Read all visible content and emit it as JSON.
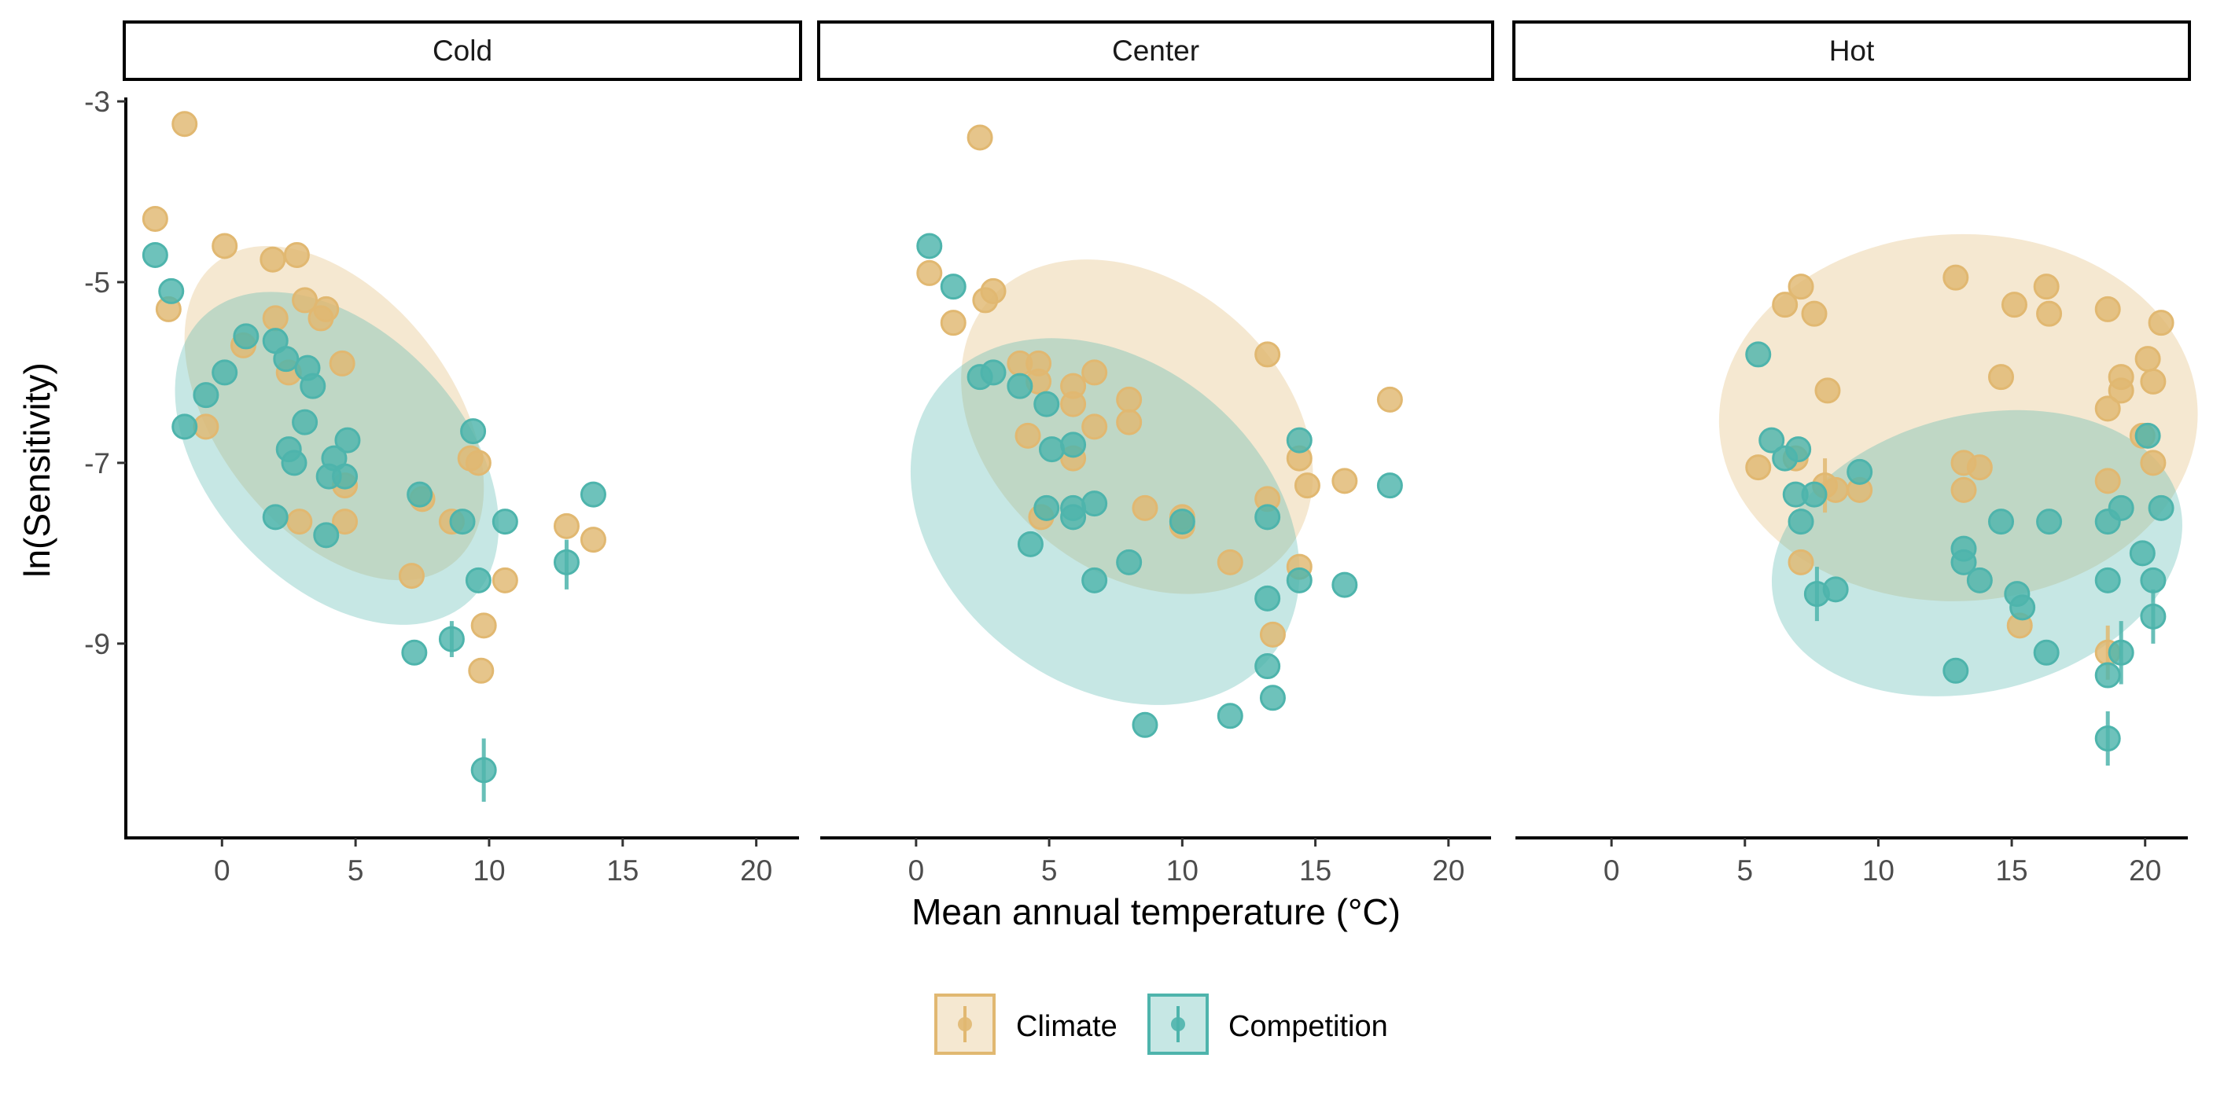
{
  "colors": {
    "climate": "#E1B871",
    "competition": "#4EB4AC"
  },
  "axes": {
    "xlabel": "Mean annual temperature (°C)",
    "ylabel": "ln(Sensitivity)",
    "x_ticks": [
      0,
      5,
      10,
      15,
      20
    ],
    "x_tick_labels": [
      "0",
      "5",
      "10",
      "15",
      "20"
    ],
    "y_ticks": [
      -3,
      -5,
      -7,
      -9
    ],
    "y_tick_labels": [
      "-3",
      "-5",
      "-7",
      "-9"
    ]
  },
  "legend": {
    "position": "bottom",
    "items": [
      {
        "label": "Climate",
        "series": "climate"
      },
      {
        "label": "Competition",
        "series": "competition"
      }
    ]
  },
  "chart_data": {
    "type": "scatter",
    "xlabel": "Mean annual temperature (°C)",
    "ylabel": "ln(Sensitivity)",
    "xlim": [
      -3.6,
      21.6
    ],
    "ylim": [
      -11.15,
      -2.8
    ],
    "grid": false,
    "legend_position": "bottom",
    "facets": [
      {
        "label": "Cold",
        "series": [
          {
            "name": "Climate",
            "color": "#E1B871",
            "ellipse": {
              "cx": 4.2,
              "cy": -6.45,
              "rx": 9.0,
              "ry": 1.35,
              "angle_deg": 52
            },
            "points": [
              [
                -2.5,
                -4.3
              ],
              [
                -1.4,
                -3.25
              ],
              [
                0.1,
                -4.6
              ],
              [
                -2.0,
                -5.3
              ],
              [
                1.9,
                -4.75
              ],
              [
                2.8,
                -4.7
              ],
              [
                3.1,
                -5.2
              ],
              [
                2.0,
                -5.4
              ],
              [
                3.7,
                -5.4
              ],
              [
                3.9,
                -5.3
              ],
              [
                0.8,
                -5.7
              ],
              [
                2.5,
                -6.0
              ],
              [
                -0.6,
                -6.6
              ],
              [
                4.5,
                -5.9
              ],
              [
                2.9,
                -7.65
              ],
              [
                4.6,
                -7.25
              ],
              [
                4.6,
                -7.65
              ],
              [
                7.5,
                -7.4
              ],
              [
                7.1,
                -8.25
              ],
              [
                8.6,
                -7.65
              ],
              [
                9.3,
                -6.95
              ],
              [
                9.6,
                -7.0
              ],
              [
                10.6,
                -8.3
              ],
              [
                9.8,
                -8.8
              ],
              [
                9.7,
                -9.3
              ],
              [
                12.9,
                -7.7
              ],
              [
                13.9,
                -7.85
              ]
            ],
            "error_points": []
          },
          {
            "name": "Competition",
            "color": "#4EB4AC",
            "ellipse": {
              "cx": 4.3,
              "cy": -6.95,
              "rx": 9.0,
              "ry": 1.5,
              "angle_deg": 47
            },
            "points": [
              [
                -2.5,
                -4.7
              ],
              [
                -1.9,
                -5.1
              ],
              [
                -1.4,
                -6.6
              ],
              [
                -0.6,
                -6.25
              ],
              [
                0.1,
                -6.0
              ],
              [
                0.9,
                -5.6
              ],
              [
                2.0,
                -5.65
              ],
              [
                2.4,
                -5.85
              ],
              [
                3.2,
                -5.95
              ],
              [
                3.4,
                -6.15
              ],
              [
                3.1,
                -6.55
              ],
              [
                4.7,
                -6.75
              ],
              [
                4.2,
                -6.95
              ],
              [
                4.0,
                -7.15
              ],
              [
                2.5,
                -6.85
              ],
              [
                2.7,
                -7.0
              ],
              [
                2.0,
                -7.6
              ],
              [
                4.6,
                -7.15
              ],
              [
                3.9,
                -7.8
              ],
              [
                7.4,
                -7.35
              ],
              [
                9.4,
                -6.65
              ],
              [
                9.0,
                -7.65
              ],
              [
                10.6,
                -7.65
              ],
              [
                9.6,
                -8.3
              ],
              [
                12.9,
                -8.1
              ],
              [
                13.9,
                -7.35
              ],
              [
                8.6,
                -8.95
              ],
              [
                7.2,
                -9.1
              ],
              [
                9.8,
                -10.4
              ]
            ],
            "error_points": [
              {
                "x": 12.9,
                "y": -8.1,
                "low": -8.4,
                "high": -7.85
              },
              {
                "x": 9.8,
                "y": -10.4,
                "low": -10.75,
                "high": -10.05
              },
              {
                "x": 8.6,
                "y": -8.95,
                "low": -9.15,
                "high": -8.75
              }
            ]
          }
        ]
      },
      {
        "label": "Center",
        "series": [
          {
            "name": "Climate",
            "color": "#E1B871",
            "ellipse": {
              "cx": 8.3,
              "cy": -6.6,
              "rx": 8.6,
              "ry": 1.8,
              "angle_deg": 40
            },
            "points": [
              [
                0.5,
                -4.9
              ],
              [
                2.4,
                -3.4
              ],
              [
                1.4,
                -5.45
              ],
              [
                2.6,
                -5.2
              ],
              [
                2.9,
                -5.1
              ],
              [
                3.9,
                -5.9
              ],
              [
                4.6,
                -5.9
              ],
              [
                4.6,
                -6.1
              ],
              [
                4.2,
                -6.7
              ],
              [
                5.9,
                -6.15
              ],
              [
                5.9,
                -6.35
              ],
              [
                6.7,
                -6.0
              ],
              [
                5.9,
                -6.95
              ],
              [
                6.7,
                -6.6
              ],
              [
                8.0,
                -6.3
              ],
              [
                8.0,
                -6.55
              ],
              [
                4.7,
                -7.6
              ],
              [
                8.6,
                -7.5
              ],
              [
                10.0,
                -7.6
              ],
              [
                10.0,
                -7.7
              ],
              [
                11.8,
                -8.1
              ],
              [
                13.2,
                -5.8
              ],
              [
                13.2,
                -7.4
              ],
              [
                14.4,
                -6.95
              ],
              [
                14.7,
                -7.25
              ],
              [
                14.4,
                -8.15
              ],
              [
                13.4,
                -8.9
              ],
              [
                16.1,
                -7.2
              ],
              [
                17.8,
                -6.3
              ]
            ],
            "error_points": []
          },
          {
            "name": "Competition",
            "color": "#4EB4AC",
            "ellipse": {
              "cx": 7.1,
              "cy": -7.65,
              "rx": 9.4,
              "ry": 2.0,
              "angle_deg": 39
            },
            "points": [
              [
                0.5,
                -4.6
              ],
              [
                1.4,
                -5.05
              ],
              [
                2.4,
                -6.05
              ],
              [
                2.9,
                -6.0
              ],
              [
                3.9,
                -6.15
              ],
              [
                4.9,
                -6.35
              ],
              [
                5.1,
                -6.85
              ],
              [
                5.9,
                -6.8
              ],
              [
                4.3,
                -7.9
              ],
              [
                4.9,
                -7.5
              ],
              [
                5.9,
                -7.5
              ],
              [
                5.9,
                -7.6
              ],
              [
                6.7,
                -7.45
              ],
              [
                6.7,
                -8.3
              ],
              [
                8.0,
                -8.1
              ],
              [
                8.6,
                -9.9
              ],
              [
                10.0,
                -7.65
              ],
              [
                11.8,
                -9.8
              ],
              [
                13.2,
                -7.6
              ],
              [
                13.2,
                -8.5
              ],
              [
                13.2,
                -9.25
              ],
              [
                13.4,
                -9.6
              ],
              [
                14.4,
                -6.75
              ],
              [
                14.4,
                -8.3
              ],
              [
                16.1,
                -8.35
              ],
              [
                17.8,
                -7.25
              ]
            ],
            "error_points": []
          }
        ]
      },
      {
        "label": "Hot",
        "series": [
          {
            "name": "Climate",
            "color": "#E1B871",
            "ellipse": {
              "cx": 13.0,
              "cy": -6.5,
              "rx": 10.4,
              "ry": 2.3,
              "angle_deg": -2
            },
            "points": [
              [
                5.5,
                -7.05
              ],
              [
                6.5,
                -5.25
              ],
              [
                7.1,
                -5.05
              ],
              [
                7.6,
                -5.35
              ],
              [
                6.9,
                -6.95
              ],
              [
                8.1,
                -6.2
              ],
              [
                7.1,
                -8.1
              ],
              [
                8.0,
                -7.25
              ],
              [
                8.4,
                -7.3
              ],
              [
                9.3,
                -7.3
              ],
              [
                12.9,
                -4.95
              ],
              [
                14.6,
                -6.05
              ],
              [
                15.1,
                -5.25
              ],
              [
                16.3,
                -5.05
              ],
              [
                16.4,
                -5.35
              ],
              [
                13.2,
                -7.0
              ],
              [
                13.2,
                -7.3
              ],
              [
                13.8,
                -7.05
              ],
              [
                15.3,
                -8.8
              ],
              [
                18.6,
                -5.3
              ],
              [
                18.6,
                -6.4
              ],
              [
                19.1,
                -6.05
              ],
              [
                19.1,
                -6.2
              ],
              [
                20.1,
                -5.85
              ],
              [
                20.3,
                -6.1
              ],
              [
                20.6,
                -5.45
              ],
              [
                19.9,
                -6.7
              ],
              [
                20.3,
                -7.0
              ],
              [
                18.6,
                -7.2
              ],
              [
                18.6,
                -9.1
              ]
            ],
            "error_points": [
              {
                "x": 8.0,
                "y": -7.25,
                "low": -7.55,
                "high": -6.95
              },
              {
                "x": 18.6,
                "y": -9.1,
                "low": -9.4,
                "high": -8.8
              }
            ]
          },
          {
            "name": "Competition",
            "color": "#4EB4AC",
            "ellipse": {
              "cx": 13.7,
              "cy": -8.0,
              "rx": 9.6,
              "ry": 1.65,
              "angle_deg": -14
            },
            "points": [
              [
                5.5,
                -5.8
              ],
              [
                6.0,
                -6.75
              ],
              [
                6.5,
                -6.95
              ],
              [
                7.0,
                -6.85
              ],
              [
                6.9,
                -7.35
              ],
              [
                7.1,
                -7.65
              ],
              [
                7.6,
                -7.35
              ],
              [
                7.7,
                -8.45
              ],
              [
                8.4,
                -8.4
              ],
              [
                9.3,
                -7.1
              ],
              [
                12.9,
                -9.3
              ],
              [
                13.2,
                -7.95
              ],
              [
                13.2,
                -8.1
              ],
              [
                13.8,
                -8.3
              ],
              [
                14.6,
                -7.65
              ],
              [
                15.2,
                -8.45
              ],
              [
                15.4,
                -8.6
              ],
              [
                16.3,
                -9.1
              ],
              [
                16.4,
                -7.65
              ],
              [
                18.6,
                -7.65
              ],
              [
                18.6,
                -8.3
              ],
              [
                18.6,
                -9.35
              ],
              [
                18.6,
                -10.05
              ],
              [
                19.1,
                -9.1
              ],
              [
                19.1,
                -7.5
              ],
              [
                19.9,
                -8.0
              ],
              [
                20.1,
                -6.7
              ],
              [
                20.3,
                -8.3
              ],
              [
                20.3,
                -8.7
              ],
              [
                20.6,
                -7.5
              ]
            ],
            "error_points": [
              {
                "x": 7.7,
                "y": -8.45,
                "low": -8.75,
                "high": -8.15
              },
              {
                "x": 18.6,
                "y": -10.05,
                "low": -10.35,
                "high": -9.75
              },
              {
                "x": 19.1,
                "y": -9.1,
                "low": -9.45,
                "high": -8.75
              },
              {
                "x": 20.3,
                "y": -8.7,
                "low": -9.0,
                "high": -8.4
              }
            ]
          }
        ]
      }
    ]
  }
}
